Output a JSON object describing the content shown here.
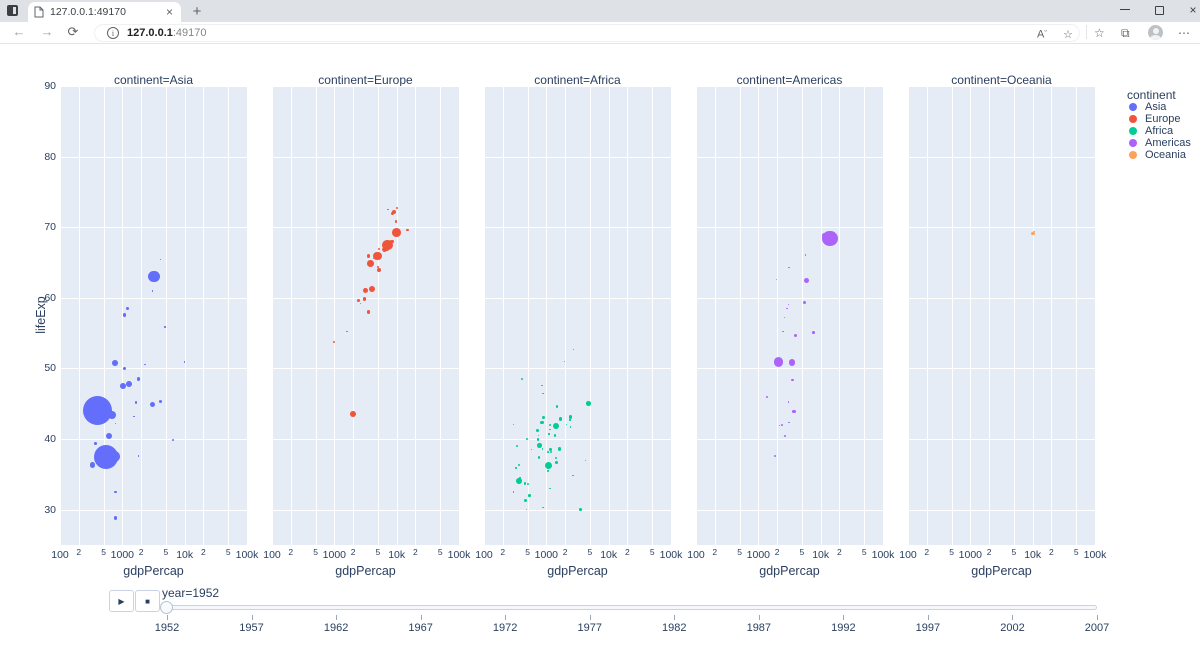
{
  "browser": {
    "tab": {
      "title": "127.0.0.1:49170"
    },
    "address": {
      "host": "127.0.0.1",
      "port": ":49170"
    },
    "icons": {
      "close": "×",
      "new_tab": "+",
      "back": "←",
      "forward": "→",
      "refresh": "⟳",
      "info": "i",
      "read_aloud": "A",
      "favorites_add": "☆",
      "favorites": "☆",
      "collections": "⧉",
      "more": "⋯",
      "minimize": "—"
    }
  },
  "chart_data": {
    "type": "scatter",
    "facet_field": "continent",
    "facet_titles": [
      "continent=Asia",
      "continent=Europe",
      "continent=Africa",
      "continent=Americas",
      "continent=Oceania"
    ],
    "x_axis": {
      "label": "gdpPercap",
      "scale": "log",
      "range": [
        100,
        100000
      ],
      "ticks": [
        {
          "v": 100,
          "label": "100",
          "major": true
        },
        {
          "v": 200,
          "label": "2",
          "major": false
        },
        {
          "v": 500,
          "label": "5",
          "major": false
        },
        {
          "v": 1000,
          "label": "1000",
          "major": true
        },
        {
          "v": 2000,
          "label": "2",
          "major": false
        },
        {
          "v": 5000,
          "label": "5",
          "major": false
        },
        {
          "v": 10000,
          "label": "10k",
          "major": true
        },
        {
          "v": 20000,
          "label": "2",
          "major": false
        },
        {
          "v": 50000,
          "label": "5",
          "major": false
        },
        {
          "v": 100000,
          "label": "100k",
          "major": true
        }
      ]
    },
    "y_axis": {
      "label": "lifeExp",
      "range": [
        25,
        90
      ],
      "ticks": [
        30,
        40,
        50,
        60,
        70,
        80,
        90
      ]
    },
    "legend": {
      "title": "continent",
      "items": [
        {
          "label": "Asia",
          "color": "#636efa"
        },
        {
          "label": "Europe",
          "color": "#ef553b"
        },
        {
          "label": "Africa",
          "color": "#00cc96"
        },
        {
          "label": "Americas",
          "color": "#ab63fa"
        },
        {
          "label": "Oceania",
          "color": "#ffa15a"
        }
      ]
    },
    "size": {
      "field": "pop",
      "size_max": 45,
      "max_value": 1318683096
    },
    "layout": {
      "plot_bg": "#e5ecf6",
      "grid_color": "#ffffff",
      "font_color": "#2a3f5f"
    },
    "series": [
      {
        "name": "Asia",
        "color": "#636efa",
        "points": [
          [
            779,
            28.8,
            8425333
          ],
          [
            9867,
            50.9,
            120447
          ],
          [
            684,
            37.5,
            46886859
          ],
          [
            368,
            39.4,
            4693836
          ],
          [
            400,
            44,
            556263527
          ],
          [
            3054,
            61,
            2125900
          ],
          [
            546,
            37.4,
            372000000
          ],
          [
            750,
            37.5,
            82052000
          ],
          [
            3035,
            44.9,
            17272000
          ],
          [
            4130,
            45.3,
            5441766
          ],
          [
            4086,
            65.4,
            1620914
          ],
          [
            3217,
            63,
            86459025
          ],
          [
            1547,
            43.2,
            607914
          ],
          [
            1088,
            50,
            8865488
          ],
          [
            1031,
            47.5,
            20947571
          ],
          [
            108382,
            55.6,
            160000
          ],
          [
            4834,
            55.9,
            1439529
          ],
          [
            1831,
            48.5,
            6748378
          ],
          [
            787,
            42.2,
            800663
          ],
          [
            331,
            36.3,
            20092996
          ],
          [
            545,
            36.2,
            9182536
          ],
          [
            1828,
            37.6,
            507833
          ],
          [
            684,
            43.4,
            41346560
          ],
          [
            1272,
            47.8,
            22438691
          ],
          [
            6459,
            39.9,
            4005677
          ],
          [
            2315,
            50.6,
            1127000
          ],
          [
            1084,
            57.6,
            7982342
          ],
          [
            1643,
            45.2,
            3661549
          ],
          [
            1207,
            58.5,
            8550362
          ],
          [
            757,
            50.8,
            21289402
          ],
          [
            605,
            40.4,
            26246839
          ],
          [
            1515,
            43.2,
            1030585
          ],
          [
            782,
            32.5,
            4963829
          ]
        ]
      },
      {
        "name": "Europe",
        "color": "#ef553b",
        "points": [
          [
            1601,
            55.2,
            1282697
          ],
          [
            6137,
            66.8,
            6927772
          ],
          [
            8343,
            68,
            8730405
          ],
          [
            974,
            53.8,
            2791000
          ],
          [
            2444,
            59.6,
            7274900
          ],
          [
            3119,
            61.2,
            3882229
          ],
          [
            6876,
            66.9,
            12745773
          ],
          [
            9692,
            70.8,
            4334000
          ],
          [
            6425,
            66.6,
            4090500
          ],
          [
            7030,
            67.4,
            42459667
          ],
          [
            7144,
            67.5,
            69145952
          ],
          [
            3530,
            65.9,
            7733250
          ],
          [
            5264,
            64,
            9504000
          ],
          [
            7268,
            72.5,
            147962
          ],
          [
            5210,
            66.9,
            2952156
          ],
          [
            4931,
            65.9,
            47666000
          ],
          [
            2648,
            59.2,
            413834
          ],
          [
            8942,
            72.1,
            10381988
          ],
          [
            10095,
            72.7,
            3327728
          ],
          [
            4029,
            61.3,
            25730551
          ],
          [
            3068,
            59.8,
            8526050
          ],
          [
            3145,
            61.1,
            16630000
          ],
          [
            3581,
            58,
            6860147
          ],
          [
            5074,
            64.4,
            3558137
          ],
          [
            4215,
            65.6,
            1489518
          ],
          [
            3834,
            64.9,
            28549870
          ],
          [
            8528,
            71.9,
            7124673
          ],
          [
            14734,
            69.6,
            4815000
          ],
          [
            1969,
            43.6,
            22235677
          ],
          [
            9980,
            69.2,
            50430000
          ]
        ]
      },
      {
        "name": "Africa",
        "color": "#00cc96",
        "points": [
          [
            2449,
            43.1,
            9279525
          ],
          [
            3521,
            30,
            4232095
          ],
          [
            1063,
            38.2,
            1738315
          ],
          [
            851,
            47.6,
            442308
          ],
          [
            543,
            32,
            4469979
          ],
          [
            339,
            39,
            2445618
          ],
          [
            1173,
            38.5,
            5009067
          ],
          [
            1071,
            35.5,
            1291695
          ],
          [
            1179,
            38.1,
            2682462
          ],
          [
            1103,
            40.7,
            153936
          ],
          [
            781,
            39.1,
            14100005
          ],
          [
            2126,
            42.1,
            854885
          ],
          [
            1389,
            40.5,
            2977019
          ],
          [
            2670,
            34.8,
            63149
          ],
          [
            1419,
            41.9,
            22223309
          ],
          [
            376,
            34.5,
            216964
          ],
          [
            329,
            35.9,
            1438760
          ],
          [
            362,
            34.1,
            20860941
          ],
          [
            4293,
            37,
            420702
          ],
          [
            485,
            30,
            284320
          ],
          [
            911,
            43.1,
            5581001
          ],
          [
            510,
            33.7,
            2664249
          ],
          [
            300,
            32.5,
            580653
          ],
          [
            854,
            42.3,
            6464046
          ],
          [
            299,
            42.1,
            748747
          ],
          [
            576,
            38.5,
            863308
          ],
          [
            2387,
            42.7,
            1019729
          ],
          [
            1443,
            36.7,
            4762912
          ],
          [
            369,
            36.3,
            2917802
          ],
          [
            452,
            33.7,
            3838168
          ],
          [
            743,
            40.5,
            1022556
          ],
          [
            1968,
            51,
            516556
          ],
          [
            1688,
            42.9,
            9939217
          ],
          [
            469,
            31.3,
            6446316
          ],
          [
            2424,
            41.7,
            485831
          ],
          [
            761,
            37.4,
            3379468
          ],
          [
            1077,
            36.3,
            33119096
          ],
          [
            2718,
            52.7,
            257700
          ],
          [
            493,
            40,
            2534927
          ],
          [
            880,
            46.5,
            60011
          ],
          [
            1450,
            37.3,
            2755589
          ],
          [
            880,
            30.3,
            2143249
          ],
          [
            1136,
            33,
            2526994
          ],
          [
            4725,
            45,
            14264935
          ],
          [
            1616,
            38.6,
            8504667
          ],
          [
            1148,
            41.4,
            290243
          ],
          [
            717,
            41.2,
            8322925
          ],
          [
            859,
            38.6,
            1219113
          ],
          [
            1468,
            44.6,
            3647735
          ],
          [
            735,
            40,
            5824797
          ],
          [
            1147,
            42,
            2672000
          ],
          [
            407,
            48.5,
            3080907
          ]
        ]
      },
      {
        "name": "Americas",
        "color": "#ab63fa",
        "points": [
          [
            5911,
            62.5,
            17876956
          ],
          [
            2677,
            40.4,
            2883315
          ],
          [
            2109,
            50.9,
            56602560
          ],
          [
            11367,
            68.8,
            14785584
          ],
          [
            3940,
            54.7,
            6377619
          ],
          [
            2144,
            50.6,
            12350771
          ],
          [
            2627,
            57.2,
            926317
          ],
          [
            5587,
            59.4,
            6007797
          ],
          [
            1398,
            45.9,
            2491346
          ],
          [
            3522,
            48.4,
            3548753
          ],
          [
            3048,
            45.3,
            2042865
          ],
          [
            2428,
            42,
            3146381
          ],
          [
            1840,
            37.6,
            3201488
          ],
          [
            2195,
            41.9,
            1517453
          ],
          [
            2899,
            58.5,
            1426095
          ],
          [
            3478,
            50.8,
            30144317
          ],
          [
            3112,
            42.3,
            1165790
          ],
          [
            2480,
            55.2,
            940080
          ],
          [
            1952,
            62.6,
            1555876
          ],
          [
            3759,
            43.9,
            8025700
          ],
          [
            3082,
            64.3,
            2227000
          ],
          [
            3023,
            59.1,
            662850
          ],
          [
            5717,
            66.1,
            2252965
          ],
          [
            7690,
            55.1,
            5439568
          ],
          [
            13990,
            68.4,
            157553000
          ]
        ]
      },
      {
        "name": "Oceania",
        "color": "#ffa15a",
        "points": [
          [
            10040,
            69.1,
            8691212
          ],
          [
            10557,
            69.4,
            1994794
          ]
        ]
      }
    ]
  },
  "slider": {
    "play": "▶",
    "stop": "■",
    "label": "year=1952",
    "value": "1952",
    "tick_labels": [
      "1952",
      "1957",
      "1962",
      "1967",
      "1972",
      "1977",
      "1982",
      "1987",
      "1992",
      "1997",
      "2002",
      "2007"
    ]
  }
}
